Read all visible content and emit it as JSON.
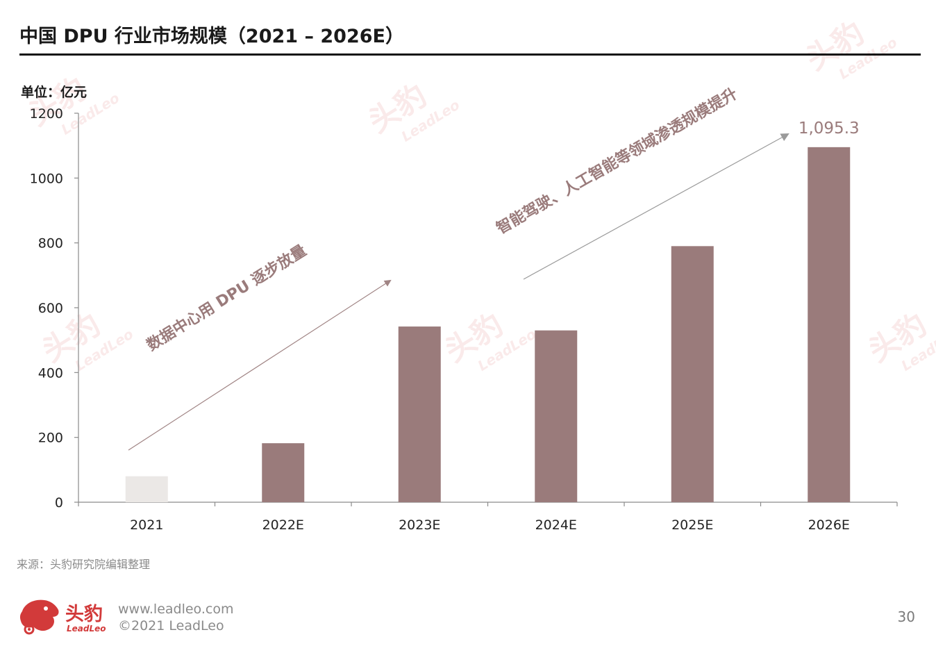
{
  "header": {
    "title": "中国 DPU 行业市场规模（2021 – 2026E）",
    "unit_label": "单位：亿元"
  },
  "chart_data": {
    "type": "bar",
    "title": "中国 DPU 行业市场规模（2021 – 2026E）",
    "xlabel": "",
    "ylabel": "单位：亿元",
    "categories": [
      "2021",
      "2022E",
      "2023E",
      "2024E",
      "2025E",
      "2026E"
    ],
    "series": [
      {
        "values": [
          80,
          182,
          542,
          530,
          790,
          1095.3
        ],
        "bar_colors": [
          "#ebe8e6",
          "#9a7b7b",
          "#9a7b7b",
          "#9a7b7b",
          "#9a7b7b",
          "#9a7b7b"
        ]
      }
    ],
    "ylim": [
      0,
      1200
    ],
    "yticks": [
      0,
      200,
      400,
      600,
      800,
      1000,
      1200
    ],
    "grid": false,
    "data_labels": [
      {
        "category": "2026E",
        "text": "1,095.3"
      }
    ],
    "annotations": [
      {
        "text": "数据中心用 DPU 逐步放量",
        "spans": [
          "2021",
          "2023E"
        ]
      },
      {
        "text": "智能驾驶、人工智能等领域渗透规模提升",
        "spans": [
          "2024E",
          "2026E"
        ]
      }
    ]
  },
  "colors": {
    "bar": "#9a7b7b",
    "bar_light": "#ebe8e6",
    "annotation_text": "#9a7b7b",
    "arrow_left": "#a08484",
    "arrow_right": "#9a9a9a",
    "axis": "#8a8a8a",
    "brand": "#d23a3a"
  },
  "watermark": {
    "cn": "头豹",
    "en": "LeadLeo"
  },
  "footer": {
    "source": "来源：头豹研究院编辑整理",
    "brand_cn": "头豹",
    "brand_en": "LeadLeo",
    "website": "www.leadleo.com",
    "copyright": "©2021 LeadLeo",
    "page_number": "30"
  }
}
